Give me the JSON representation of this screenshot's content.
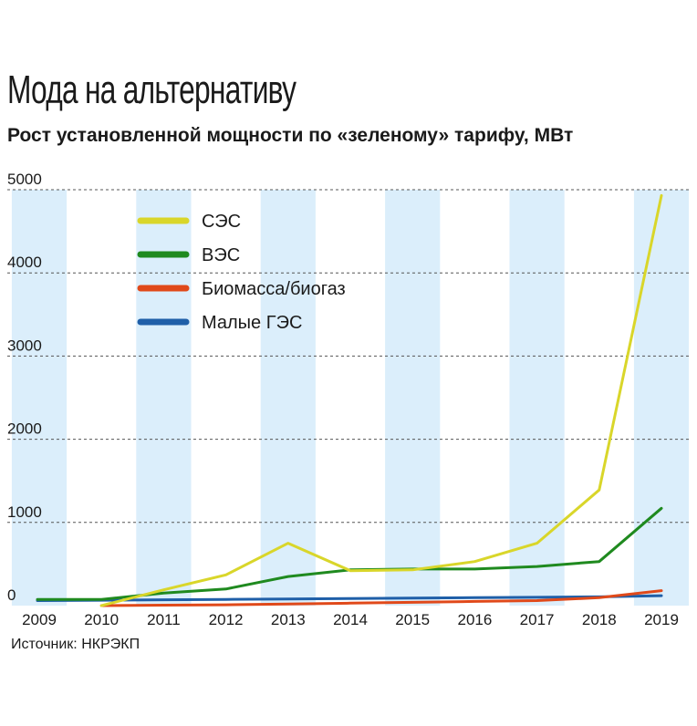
{
  "title": "Мода на альтернативу",
  "subtitle": "Рост установленной мощности по «зеленому» тарифу, МВт",
  "source": "Источник: НКРЭКП",
  "chart_data": {
    "type": "line",
    "title": "Мода на альтернативу",
    "subtitle": "Рост установленной мощности по «зеленому» тарифу, МВт",
    "x": [
      "2009",
      "2010",
      "2011",
      "2012",
      "2013",
      "2014",
      "2015",
      "2016",
      "2017",
      "2018",
      "2019"
    ],
    "ylim": [
      0,
      5000
    ],
    "yticks": [
      "0",
      "1000",
      "2000",
      "3000",
      "4000",
      "5000"
    ],
    "grid": true,
    "legend_position": "top-left",
    "series": [
      {
        "name": "СЭС",
        "color": "#d9d62a",
        "values": [
          null,
          0,
          190,
          370,
          750,
          420,
          430,
          530,
          750,
          1390,
          4930
        ]
      },
      {
        "name": "ВЭС",
        "color": "#1f8a1f",
        "values": [
          75,
          75,
          150,
          200,
          350,
          430,
          440,
          440,
          470,
          530,
          1170
        ]
      },
      {
        "name": "Биомасса/биогаз",
        "color": "#e0491a",
        "values": [
          null,
          0,
          5,
          10,
          20,
          30,
          40,
          50,
          60,
          95,
          180
        ]
      },
      {
        "name": "Малые ГЭС",
        "color": "#1f5fa8",
        "values": [
          60,
          65,
          70,
          75,
          80,
          85,
          90,
          95,
          100,
          105,
          120
        ]
      }
    ]
  }
}
